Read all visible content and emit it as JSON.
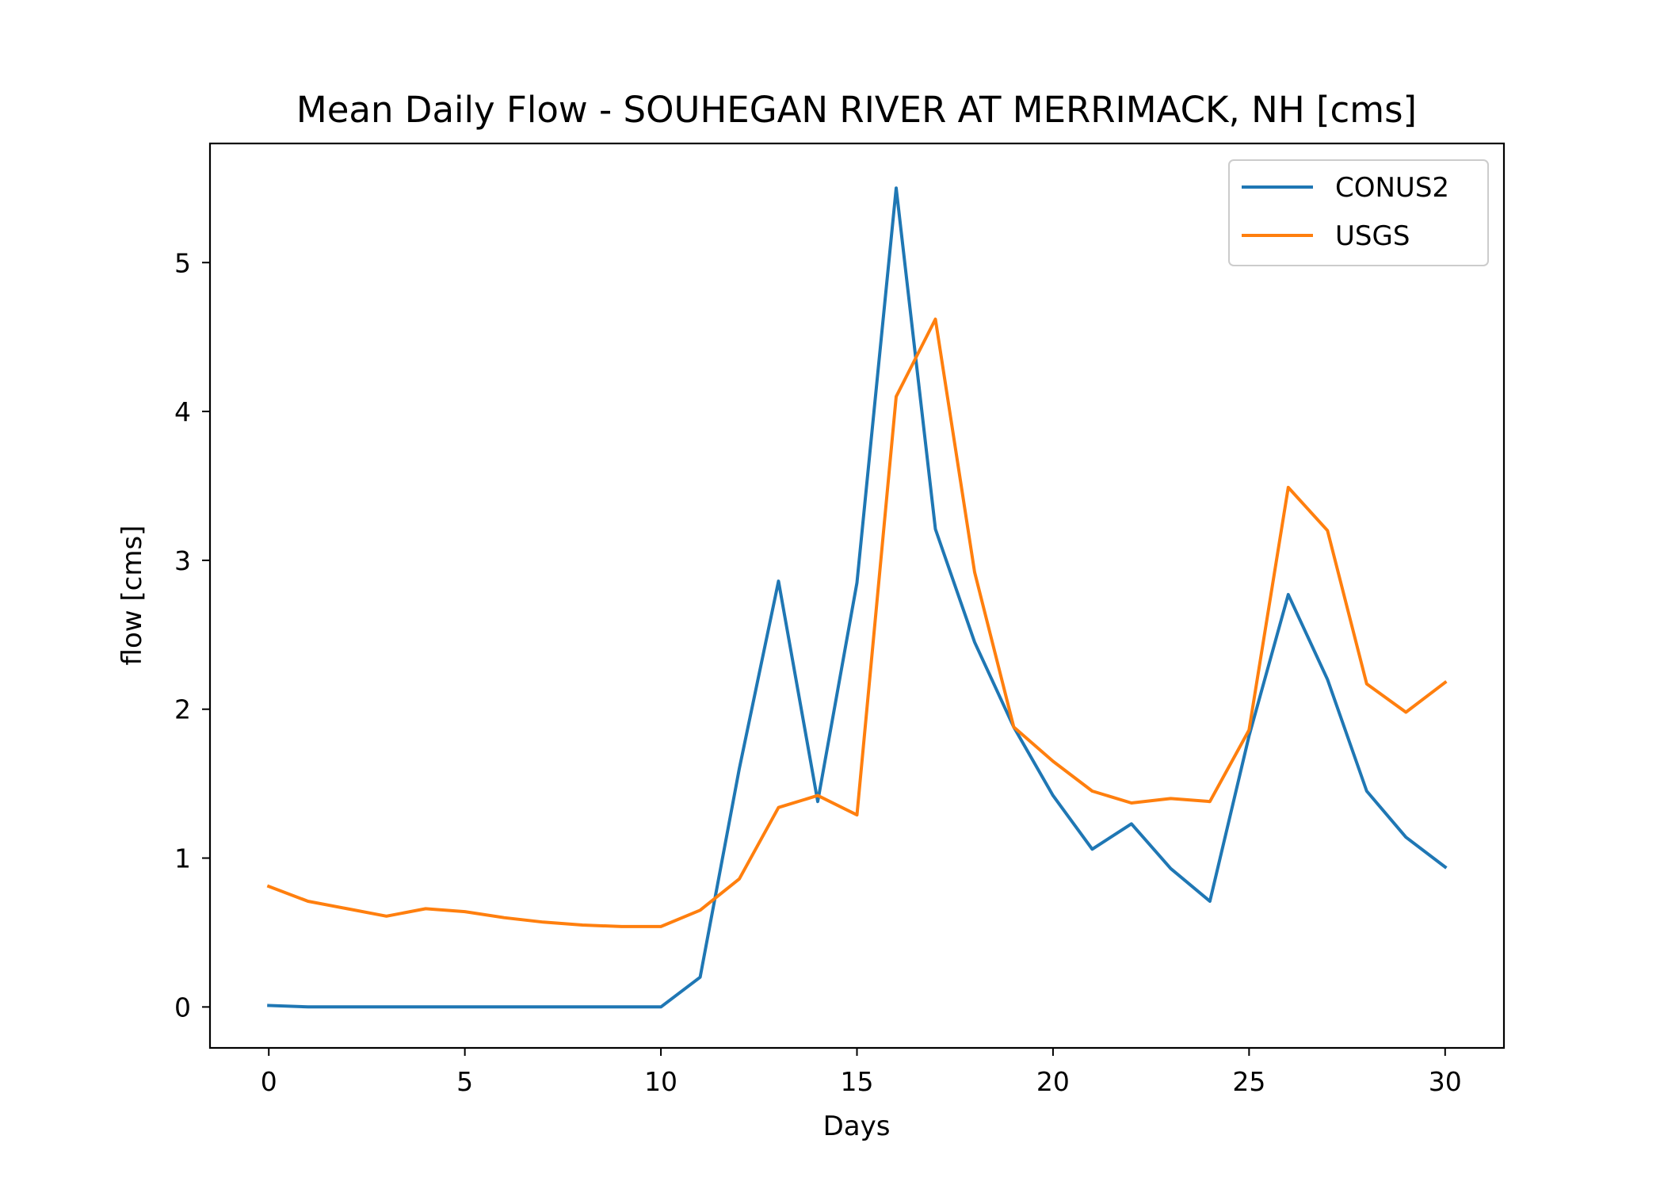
{
  "chart_data": {
    "type": "line",
    "title": "Mean Daily Flow - SOUHEGAN RIVER AT MERRIMACK, NH [cms]",
    "xlabel": "Days",
    "ylabel": "flow [cms]",
    "xlim": [
      -1.5,
      31.5
    ],
    "ylim": [
      -0.275,
      5.8
    ],
    "xticks": [
      0,
      5,
      10,
      15,
      20,
      25,
      30
    ],
    "yticks": [
      0,
      1,
      2,
      3,
      4,
      5
    ],
    "legend_position": "upper right",
    "grid": false,
    "x": [
      0,
      1,
      2,
      3,
      4,
      5,
      6,
      7,
      8,
      9,
      10,
      11,
      12,
      13,
      14,
      15,
      16,
      17,
      18,
      19,
      20,
      21,
      22,
      23,
      24,
      25,
      26,
      27,
      28,
      29,
      30
    ],
    "series": [
      {
        "name": "CONUS2",
        "color": "#1f77b4",
        "values": [
          0.01,
          0.0,
          0.0,
          0.0,
          0.0,
          0.0,
          0.0,
          0.0,
          0.0,
          0.0,
          0.0,
          0.2,
          1.6,
          2.86,
          1.38,
          2.85,
          5.5,
          3.21,
          2.45,
          1.88,
          1.42,
          1.06,
          1.23,
          0.93,
          0.71,
          1.82,
          2.77,
          2.2,
          1.45,
          1.14,
          0.94
        ]
      },
      {
        "name": "USGS",
        "color": "#ff7f0e",
        "values": [
          0.81,
          0.71,
          0.66,
          0.61,
          0.66,
          0.64,
          0.6,
          0.57,
          0.55,
          0.54,
          0.54,
          0.65,
          0.86,
          1.34,
          1.42,
          1.29,
          4.1,
          4.62,
          2.92,
          1.88,
          1.65,
          1.45,
          1.37,
          1.4,
          1.38,
          1.86,
          3.49,
          3.2,
          2.17,
          1.98,
          2.18
        ]
      }
    ]
  }
}
